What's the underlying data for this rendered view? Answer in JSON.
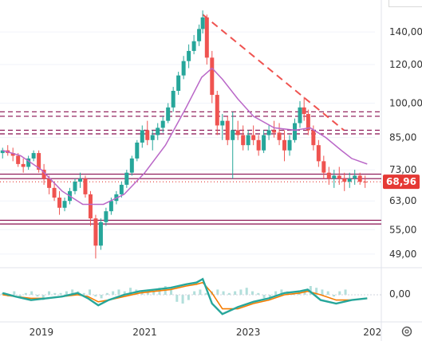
{
  "chart_data": [
    {
      "type": "candlestick",
      "panel": "price",
      "x_ticks": [
        "2019",
        "2021",
        "2023",
        "202"
      ],
      "y_ticks": [
        "140,00",
        "120,00",
        "100,00",
        "85,00",
        "73,00",
        "63,00",
        "55,00",
        "49,00"
      ],
      "y_tick_values": [
        140,
        120,
        100,
        85,
        73,
        63,
        55,
        49
      ],
      "scale": "log",
      "ylim": [
        47,
        158
      ],
      "x_range": [
        2018.2,
        2025.45
      ],
      "last_price_label": "68,96",
      "last_price": 68.96,
      "ohlc": [
        [
          2018.25,
          79,
          81,
          77,
          80
        ],
        [
          2018.35,
          80,
          82,
          78,
          79
        ],
        [
          2018.45,
          79,
          81,
          76,
          78
        ],
        [
          2018.55,
          78,
          79,
          74,
          75
        ],
        [
          2018.65,
          75,
          77,
          72,
          74
        ],
        [
          2018.75,
          74,
          78,
          73,
          77
        ],
        [
          2018.85,
          77,
          80,
          76,
          79
        ],
        [
          2018.95,
          79,
          80,
          72,
          73
        ],
        [
          2019.05,
          73,
          75,
          68,
          70
        ],
        [
          2019.15,
          70,
          71,
          65,
          67
        ],
        [
          2019.25,
          67,
          69,
          63,
          64
        ],
        [
          2019.35,
          64,
          66,
          59,
          61
        ],
        [
          2019.45,
          61,
          64,
          60,
          63
        ],
        [
          2019.55,
          63,
          67,
          62,
          66
        ],
        [
          2019.65,
          66,
          70,
          65,
          69
        ],
        [
          2019.75,
          69,
          72,
          67,
          70
        ],
        [
          2019.85,
          70,
          71,
          64,
          65
        ],
        [
          2019.95,
          65,
          66,
          56,
          58
        ],
        [
          2020.05,
          58,
          59,
          48,
          51
        ],
        [
          2020.15,
          51,
          58,
          50,
          57
        ],
        [
          2020.25,
          57,
          61,
          56,
          60
        ],
        [
          2020.35,
          60,
          64,
          59,
          63
        ],
        [
          2020.45,
          63,
          66,
          62,
          65
        ],
        [
          2020.55,
          65,
          69,
          64,
          68
        ],
        [
          2020.65,
          68,
          73,
          67,
          72
        ],
        [
          2020.75,
          72,
          78,
          71,
          77
        ],
        [
          2020.85,
          77,
          84,
          76,
          83
        ],
        [
          2020.95,
          83,
          90,
          81,
          88
        ],
        [
          2021.05,
          88,
          92,
          82,
          84
        ],
        [
          2021.15,
          84,
          88,
          80,
          86
        ],
        [
          2021.25,
          86,
          91,
          84,
          89
        ],
        [
          2021.35,
          89,
          94,
          87,
          92
        ],
        [
          2021.45,
          92,
          100,
          91,
          98
        ],
        [
          2021.55,
          98,
          108,
          96,
          106
        ],
        [
          2021.65,
          106,
          116,
          104,
          114
        ],
        [
          2021.75,
          114,
          125,
          112,
          122
        ],
        [
          2021.85,
          122,
          132,
          118,
          128
        ],
        [
          2021.95,
          128,
          138,
          126,
          134
        ],
        [
          2022.05,
          134,
          145,
          131,
          142
        ],
        [
          2022.12,
          142,
          155,
          139,
          150
        ],
        [
          2022.2,
          150,
          152,
          120,
          124
        ],
        [
          2022.3,
          124,
          128,
          100,
          104
        ],
        [
          2022.4,
          104,
          106,
          86,
          90
        ],
        [
          2022.5,
          90,
          95,
          84,
          92
        ],
        [
          2022.6,
          92,
          94,
          82,
          84
        ],
        [
          2022.7,
          84,
          96,
          70,
          88
        ],
        [
          2022.8,
          88,
          92,
          84,
          86
        ],
        [
          2022.9,
          86,
          90,
          80,
          82
        ],
        [
          2023.0,
          82,
          88,
          80,
          86
        ],
        [
          2023.1,
          86,
          90,
          82,
          84
        ],
        [
          2023.2,
          84,
          86,
          78,
          80
        ],
        [
          2023.3,
          80,
          88,
          79,
          86
        ],
        [
          2023.4,
          86,
          90,
          84,
          88
        ],
        [
          2023.5,
          88,
          92,
          85,
          87
        ],
        [
          2023.6,
          87,
          91,
          82,
          84
        ],
        [
          2023.7,
          84,
          88,
          76,
          80
        ],
        [
          2023.8,
          80,
          86,
          78,
          84
        ],
        [
          2023.9,
          84,
          93,
          83,
          91
        ],
        [
          2024.0,
          91,
          101,
          89,
          98
        ],
        [
          2024.08,
          98,
          103,
          92,
          95
        ],
        [
          2024.16,
          95,
          97,
          86,
          88
        ],
        [
          2024.26,
          88,
          90,
          80,
          82
        ],
        [
          2024.36,
          82,
          84,
          74,
          76
        ],
        [
          2024.46,
          76,
          78,
          70,
          72
        ],
        [
          2024.56,
          72,
          74,
          68,
          70
        ],
        [
          2024.66,
          70,
          73,
          67,
          71
        ],
        [
          2024.76,
          71,
          74,
          68,
          70
        ],
        [
          2024.86,
          70,
          72,
          66,
          69
        ],
        [
          2024.96,
          69,
          72,
          67,
          70
        ],
        [
          2025.06,
          70,
          73,
          68,
          71
        ],
        [
          2025.16,
          71,
          72,
          68,
          69
        ],
        [
          2025.26,
          69,
          71,
          67,
          68.96
        ]
      ],
      "moving_average": [
        [
          2018.25,
          80
        ],
        [
          2018.6,
          78
        ],
        [
          2019.0,
          73
        ],
        [
          2019.4,
          66
        ],
        [
          2019.8,
          62
        ],
        [
          2020.2,
          62
        ],
        [
          2020.6,
          65
        ],
        [
          2021.0,
          72
        ],
        [
          2021.4,
          82
        ],
        [
          2021.8,
          98
        ],
        [
          2022.1,
          113
        ],
        [
          2022.3,
          118
        ],
        [
          2022.5,
          112
        ],
        [
          2022.8,
          102
        ],
        [
          2023.1,
          94
        ],
        [
          2023.5,
          89
        ],
        [
          2023.9,
          88
        ],
        [
          2024.2,
          89
        ],
        [
          2024.5,
          85
        ],
        [
          2024.8,
          80
        ],
        [
          2025.0,
          77
        ],
        [
          2025.3,
          75
        ]
      ],
      "horizontal_levels": [
        {
          "value": 96,
          "style": "dashed",
          "color": "#880e4f"
        },
        {
          "value": 94,
          "style": "dashed",
          "color": "#880e4f"
        },
        {
          "value": 88,
          "style": "dashed",
          "color": "#880e4f"
        },
        {
          "value": 86.5,
          "style": "dashed",
          "color": "#880e4f"
        },
        {
          "value": 71.5,
          "style": "solid",
          "color": "#880e4f"
        },
        {
          "value": 70,
          "style": "solid",
          "color": "#880e4f"
        },
        {
          "value": 57.5,
          "style": "solid",
          "color": "#880e4f"
        },
        {
          "value": 56.5,
          "style": "solid",
          "color": "#880e4f"
        },
        {
          "value": 68.96,
          "style": "dotted",
          "color": "#e53935"
        }
      ],
      "trendline": {
        "from": [
          2022.12,
          152
        ],
        "to": [
          2024.85,
          88
        ],
        "style": "dashed",
        "color": "#ef5350"
      }
    },
    {
      "type": "oscillator",
      "panel": "indicator",
      "y_ticks": [
        "0,00"
      ],
      "zero_label": "0,00",
      "fast_line": [
        [
          2018.25,
          1
        ],
        [
          2018.5,
          -1
        ],
        [
          2018.8,
          -3
        ],
        [
          2019.1,
          -2
        ],
        [
          2019.4,
          -1
        ],
        [
          2019.7,
          1
        ],
        [
          2019.9,
          -2
        ],
        [
          2020.1,
          -6
        ],
        [
          2020.3,
          -3
        ],
        [
          2020.6,
          0
        ],
        [
          2020.9,
          2
        ],
        [
          2021.2,
          3
        ],
        [
          2021.5,
          4
        ],
        [
          2021.8,
          6
        ],
        [
          2022.0,
          7
        ],
        [
          2022.12,
          9
        ],
        [
          2022.3,
          -5
        ],
        [
          2022.5,
          -11
        ],
        [
          2022.8,
          -7
        ],
        [
          2023.1,
          -4
        ],
        [
          2023.4,
          -2
        ],
        [
          2023.7,
          1
        ],
        [
          2024.0,
          2
        ],
        [
          2024.15,
          3
        ],
        [
          2024.4,
          -3
        ],
        [
          2024.7,
          -5
        ],
        [
          2025.0,
          -3
        ],
        [
          2025.3,
          -2
        ]
      ],
      "slow_line": [
        [
          2018.25,
          0
        ],
        [
          2018.5,
          -1
        ],
        [
          2018.8,
          -2
        ],
        [
          2019.1,
          -2
        ],
        [
          2019.4,
          -1
        ],
        [
          2019.7,
          0
        ],
        [
          2019.9,
          -1
        ],
        [
          2020.1,
          -4
        ],
        [
          2020.3,
          -3
        ],
        [
          2020.6,
          -1
        ],
        [
          2020.9,
          1
        ],
        [
          2021.2,
          2
        ],
        [
          2021.5,
          3
        ],
        [
          2021.8,
          5
        ],
        [
          2022.0,
          6
        ],
        [
          2022.12,
          7
        ],
        [
          2022.3,
          1
        ],
        [
          2022.5,
          -8
        ],
        [
          2022.8,
          -8
        ],
        [
          2023.1,
          -5
        ],
        [
          2023.4,
          -3
        ],
        [
          2023.7,
          0
        ],
        [
          2024.0,
          1
        ],
        [
          2024.15,
          2
        ],
        [
          2024.4,
          0
        ],
        [
          2024.7,
          -3
        ],
        [
          2025.0,
          -3
        ],
        [
          2025.3,
          -2
        ]
      ],
      "histogram": [
        1,
        -1,
        2,
        -2,
        1,
        2,
        -1,
        -3,
        2,
        1,
        1,
        2,
        3,
        2,
        1,
        3,
        -1,
        -2,
        1,
        2,
        3,
        2,
        4,
        3,
        2,
        3,
        2,
        4,
        5,
        3,
        -4,
        -5,
        -3,
        2,
        3,
        1,
        2,
        3,
        2,
        1,
        2,
        3,
        4,
        2,
        1,
        -2,
        -3,
        2,
        3,
        2,
        1,
        2,
        3,
        5,
        4,
        3,
        2,
        -1,
        2,
        3
      ]
    }
  ],
  "colors": {
    "up": "#26a69a",
    "down": "#ef5350",
    "moving_average": "#ba68c8",
    "level": "#880e4f",
    "trendline": "#ef5350",
    "price_badge": "#e53935",
    "fast_line": "#26a69a",
    "slow_line": "#f57c00",
    "histogram": "#b2dfdb",
    "grid": "#f0f3fa",
    "panel_separator": "#e0e3eb"
  },
  "icons": {
    "settings": "gear-icon"
  }
}
